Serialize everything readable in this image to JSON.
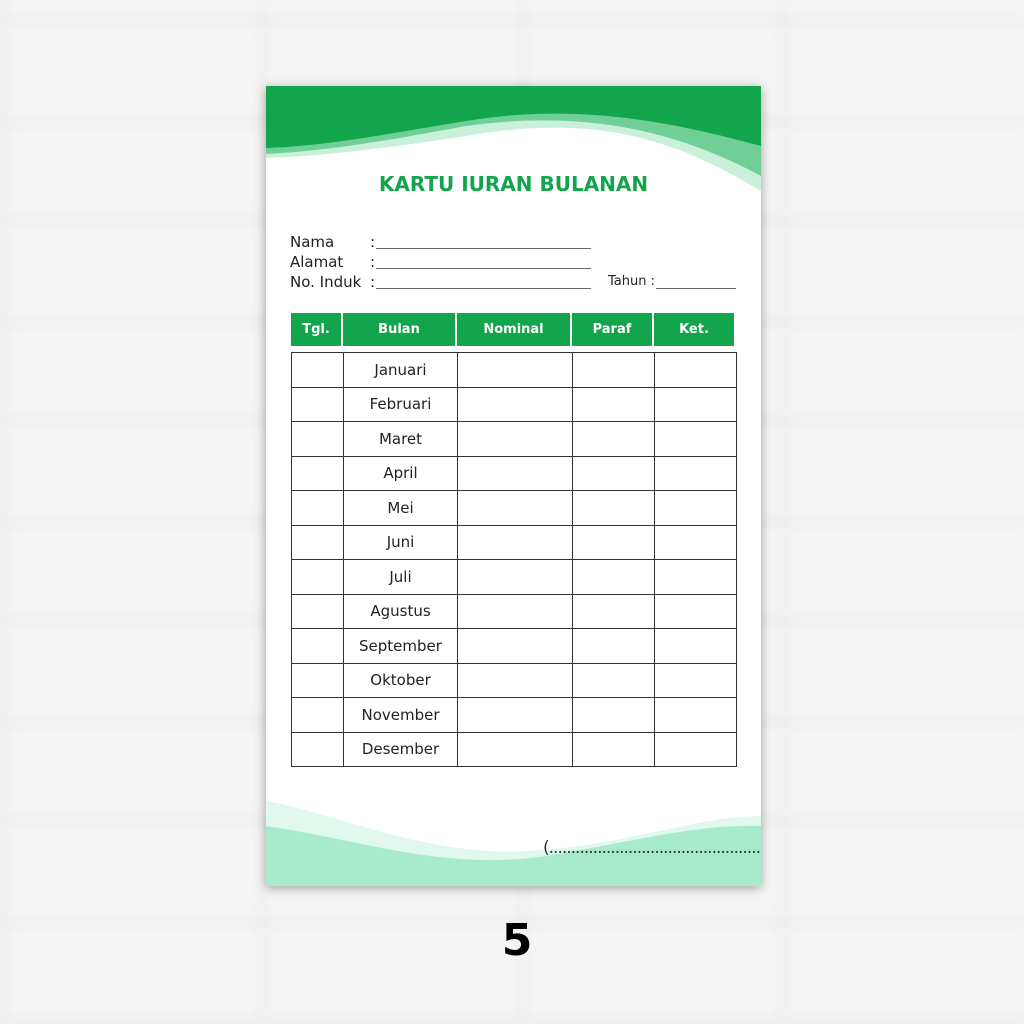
{
  "card": {
    "title": "KARTU IURAN BULANAN",
    "fields": [
      {
        "label": "Nama",
        "sep": ":"
      },
      {
        "label": "Alamat",
        "sep": ":"
      },
      {
        "label": "No. Induk",
        "sep": ":"
      }
    ],
    "year_label": "Tahun :",
    "table": {
      "headers": [
        "Tgl.",
        "Bulan",
        "Nominal",
        "Paraf",
        "Ket."
      ],
      "months": [
        "Januari",
        "Februari",
        "Maret",
        "April",
        "Mei",
        "Juni",
        "Juli",
        "Agustus",
        "September",
        "Oktober",
        "November",
        "Desember"
      ]
    },
    "signature": "(.....................................................)",
    "colors": {
      "accent": "#13a54c",
      "light": "#a8ebcc"
    }
  },
  "page_number": "5"
}
